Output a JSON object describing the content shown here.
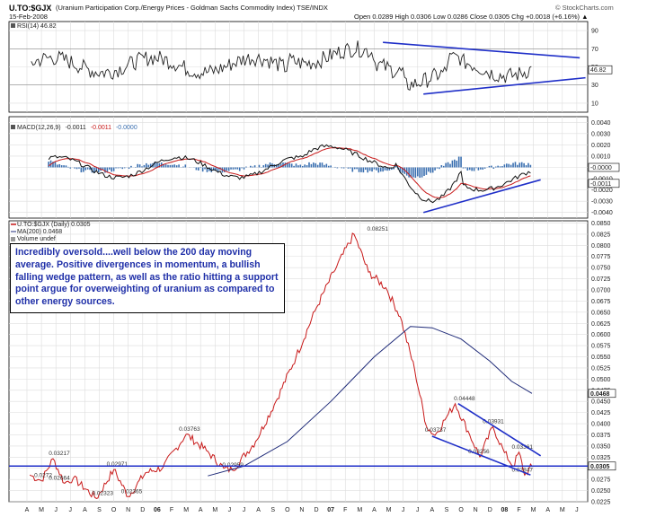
{
  "header": {
    "symbol": "U.TO:$GJX",
    "description": "(Uranium Participation Corp./Energy Prices - Goldman Sachs Commodity Index)  TSE/INDX",
    "date": "15-Feb-2008",
    "ohlc": "Open 0.0289  High 0.0306  Low 0.0286  Close 0.0305  Chg +0.0018 (+6.16%) ▲",
    "credit": "© StockCharts.com"
  },
  "note": "Incredibly oversold....well below the 200 day moving average. Positive divergences in momentum, a bullish falling wedge pattern, as well as the ratio hitting a support point argue for overweighting of uranium as compared to other energy sources.",
  "colors": {
    "price": "#c81818",
    "macd_line": "#111111",
    "macd_signal": "#c81818",
    "histogram": "#3a6fb0",
    "ma": "#1e2a78",
    "trendline": "#1f2fc8",
    "grid": "#dddddd"
  },
  "chart_data": [
    {
      "type": "line",
      "panel": "RSI",
      "legend": "RSI(14) 46.82",
      "ylim": [
        0,
        100
      ],
      "y_ticks": [
        "90",
        "70",
        "50",
        "30",
        "10"
      ],
      "current_value_label": "46.82",
      "reference_lines": [
        30,
        70
      ],
      "grid": true
    },
    {
      "type": "line",
      "panel": "MACD",
      "legend": [
        "MACD(12,26,9)",
        "-0.0011",
        "-0.0011",
        "-0.0000"
      ],
      "ylim": [
        -0.0045,
        0.0045
      ],
      "y_ticks": [
        "0.0040",
        "0.0030",
        "0.0020",
        "0.0010",
        "0.0000",
        "-0.0010",
        "-0.0020",
        "-0.0030",
        "-0.0040"
      ],
      "current_value_labels": [
        "-0.0000",
        "-0.0011"
      ],
      "grid": true
    },
    {
      "type": "line",
      "panel": "Price",
      "legend": [
        "U.TO:$GJX (Daily) 0.0305",
        "MA(200) 0.0468",
        "Volume undef"
      ],
      "ylim": [
        0.0225,
        0.0855
      ],
      "y_ticks": [
        "0.0850",
        "0.0825",
        "0.0800",
        "0.0775",
        "0.0750",
        "0.0725",
        "0.0700",
        "0.0675",
        "0.0650",
        "0.0625",
        "0.0600",
        "0.0575",
        "0.0550",
        "0.0525",
        "0.0500",
        "0.0475",
        "0.0450",
        "0.0425",
        "0.0400",
        "0.0375",
        "0.0350",
        "0.0325",
        "0.0300",
        "0.0275",
        "0.0250",
        "0.0225"
      ],
      "current_value_labels": [
        "0.0468",
        "0.0305"
      ],
      "support_level": 0.0305,
      "annotations": [
        {
          "label": "0.0272",
          "x": "2005-05",
          "y": 0.0272
        },
        {
          "label": "0.03217",
          "x": "2005-06",
          "y": 0.03217
        },
        {
          "label": "0.02664",
          "x": "2005-06",
          "y": 0.02664
        },
        {
          "label": "0.02323",
          "x": "2005-09",
          "y": 0.02323
        },
        {
          "label": "0.02971",
          "x": "2005-10",
          "y": 0.02971
        },
        {
          "label": "0.02365",
          "x": "2005-11",
          "y": 0.02365
        },
        {
          "label": "0.03763",
          "x": "2006-03",
          "y": 0.03763
        },
        {
          "label": "0.02959",
          "x": "2006-06",
          "y": 0.02959
        },
        {
          "label": "0.08251",
          "x": "2007-04",
          "y": 0.08251
        },
        {
          "label": "0.04448",
          "x": "2007-10",
          "y": 0.04448
        },
        {
          "label": "0.03931",
          "x": "2007-12",
          "y": 0.03931
        },
        {
          "label": "0.03737",
          "x": "2007-08",
          "y": 0.03737
        },
        {
          "label": "0.03256",
          "x": "2007-11",
          "y": 0.03256
        },
        {
          "label": "0.03361",
          "x": "2008-02",
          "y": 0.03361
        },
        {
          "label": "0.02847",
          "x": "2008-02",
          "y": 0.02847
        }
      ],
      "x_tick_labels": [
        "A",
        "M",
        "J",
        "J",
        "A",
        "S",
        "O",
        "N",
        "D",
        "06",
        "F",
        "M",
        "A",
        "M",
        "J",
        "J",
        "A",
        "S",
        "O",
        "N",
        "D",
        "07",
        "F",
        "M",
        "A",
        "M",
        "J",
        "J",
        "A",
        "S",
        "O",
        "N",
        "D",
        "08",
        "F",
        "M",
        "A",
        "M",
        "J",
        "J"
      ],
      "grid": true
    }
  ]
}
